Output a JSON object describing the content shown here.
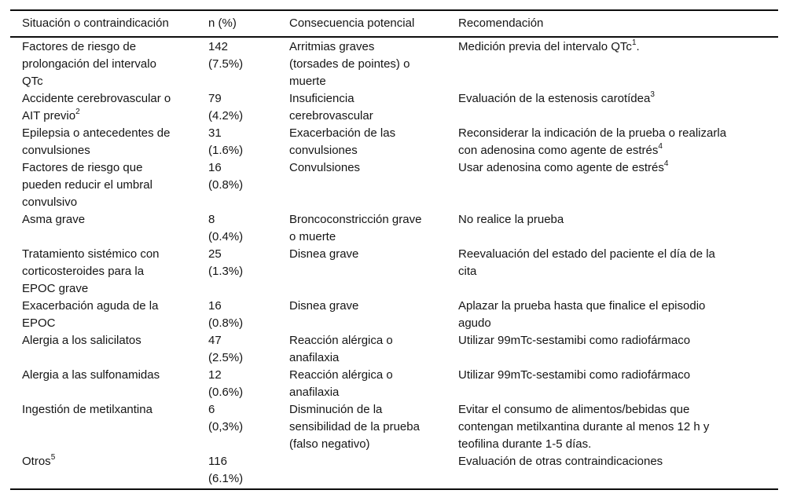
{
  "colors": {
    "background": "#ffffff",
    "text": "#151515",
    "rule": "#0d0d0d"
  },
  "table": {
    "headers": [
      "Situación o contraindicación",
      "n (%)",
      "Consecuencia potencial",
      "Recomendación"
    ],
    "rows": [
      {
        "situacion": [
          "Factores de riesgo de",
          "prolongación del intervalo",
          "QTc"
        ],
        "n": [
          "142",
          "(7.5%)"
        ],
        "consecuencia": [
          "Arritmias graves",
          "(torsades de pointes) o",
          "muerte"
        ],
        "recomendacion": [
          "Medición previa del intervalo QTc^1."
        ]
      },
      {
        "situacion": [
          "Accidente cerebrovascular o",
          "AIT previo^2"
        ],
        "n": [
          "79",
          "(4.2%)"
        ],
        "consecuencia": [
          "Insuficiencia",
          "cerebrovascular"
        ],
        "recomendacion": [
          "Evaluación de la estenosis carotídea^3"
        ]
      },
      {
        "situacion": [
          "Epilepsia o antecedentes de",
          "convulsiones"
        ],
        "n": [
          "31",
          "(1.6%)"
        ],
        "consecuencia": [
          "Exacerbación de las",
          "convulsiones"
        ],
        "recomendacion": [
          "Reconsiderar la indicación de la prueba o realizarla",
          "con adenosina como agente de estrés^4"
        ]
      },
      {
        "situacion": [
          "Factores de riesgo que",
          "pueden reducir el umbral",
          "convulsivo"
        ],
        "n": [
          "16",
          "(0.8%)"
        ],
        "consecuencia": [
          "Convulsiones"
        ],
        "recomendacion": [
          "Usar adenosina como agente de estrés^4"
        ]
      },
      {
        "situacion": [
          "Asma grave"
        ],
        "n": [
          "8",
          "(0.4%)"
        ],
        "consecuencia": [
          "Broncoconstricción grave",
          "o muerte"
        ],
        "recomendacion": [
          "No realice la prueba"
        ]
      },
      {
        "situacion": [
          "Tratamiento sistémico con",
          "corticosteroides para la",
          "EPOC grave"
        ],
        "n": [
          "25",
          "(1.3%)"
        ],
        "consecuencia": [
          "Disnea grave"
        ],
        "recomendacion": [
          "Reevaluación del estado del paciente el día de la",
          "cita"
        ]
      },
      {
        "situacion": [
          "Exacerbación aguda de la",
          "EPOC"
        ],
        "n": [
          "16",
          "(0.8%)"
        ],
        "consecuencia": [
          "Disnea grave"
        ],
        "recomendacion": [
          "Aplazar la prueba hasta que finalice el episodio",
          "agudo"
        ]
      },
      {
        "situacion": [
          "Alergia a los salicilatos"
        ],
        "n": [
          "47",
          "(2.5%)"
        ],
        "consecuencia": [
          "Reacción alérgica o",
          "anafilaxia"
        ],
        "recomendacion": [
          "Utilizar 99mTc-sestamibi como radiofármaco"
        ]
      },
      {
        "situacion": [
          "Alergia a las sulfonamidas"
        ],
        "n": [
          "12",
          "(0.6%)"
        ],
        "consecuencia": [
          "Reacción alérgica o",
          "anafilaxia"
        ],
        "recomendacion": [
          "Utilizar 99mTc-sestamibi como radiofármaco"
        ]
      },
      {
        "situacion": [
          "Ingestión de metilxantina"
        ],
        "n": [
          "6",
          "(0,3%)"
        ],
        "consecuencia": [
          "Disminución de la",
          "sensibilidad de la prueba",
          "(falso negativo)"
        ],
        "recomendacion": [
          "Evitar el consumo de alimentos/bebidas que",
          "contengan metilxantina durante al menos 12 h y",
          "teofilina durante 1-5 días."
        ]
      },
      {
        "situacion": [
          "Otros^5"
        ],
        "n": [
          "116",
          "(6.1%)"
        ],
        "consecuencia": [],
        "recomendacion": [
          "Evaluación de otras contraindicaciones"
        ]
      }
    ]
  }
}
